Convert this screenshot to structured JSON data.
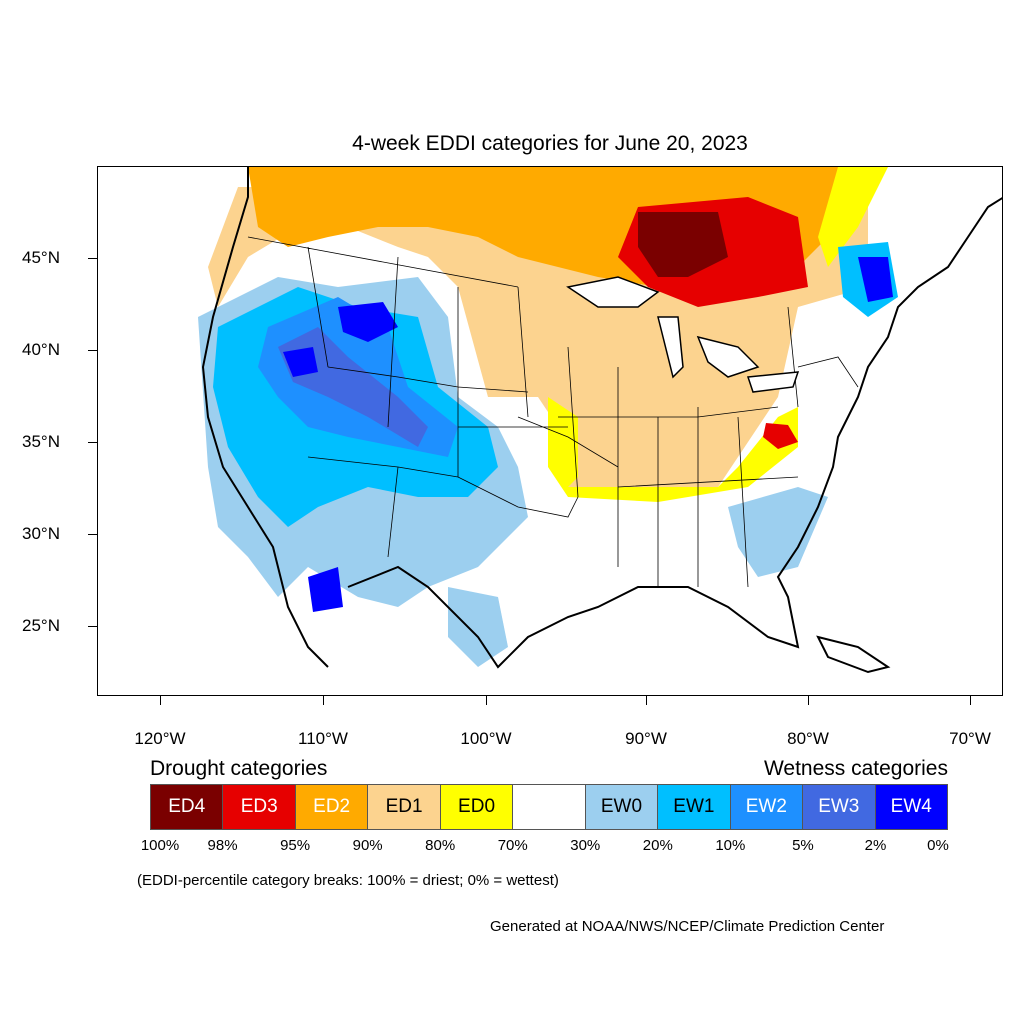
{
  "title": "4-week EDDI categories for June 20, 2023",
  "lat_labels": [
    "45°N",
    "40°N",
    "35°N",
    "30°N",
    "25°N"
  ],
  "lon_labels": [
    "120°W",
    "110°W",
    "100°W",
    "90°W",
    "80°W",
    "70°W"
  ],
  "legend": {
    "drought_heading": "Drought categories",
    "wetness_heading": "Wetness categories",
    "categories": [
      {
        "label": "ED4",
        "color": "#7a0000",
        "text_color": "#ffffff"
      },
      {
        "label": "ED3",
        "color": "#e60000",
        "text_color": "#ffffff"
      },
      {
        "label": "ED2",
        "color": "#ffaa00",
        "text_color": "#ffffff"
      },
      {
        "label": "ED1",
        "color": "#fcd38f",
        "text_color": "#000000"
      },
      {
        "label": "ED0",
        "color": "#ffff00",
        "text_color": "#000000"
      },
      {
        "label": "",
        "color": "#ffffff",
        "text_color": "#000000"
      },
      {
        "label": "EW0",
        "color": "#9ccfef",
        "text_color": "#000000"
      },
      {
        "label": "EW1",
        "color": "#00bfff",
        "text_color": "#000000"
      },
      {
        "label": "EW2",
        "color": "#1e90ff",
        "text_color": "#ffffff"
      },
      {
        "label": "EW3",
        "color": "#4169e1",
        "text_color": "#ffffff"
      },
      {
        "label": "EW4",
        "color": "#0000ff",
        "text_color": "#ffffff"
      }
    ],
    "percentiles": [
      "100%",
      "98%",
      "95%",
      "90%",
      "80%",
      "70%",
      "30%",
      "20%",
      "10%",
      "5%",
      "2%",
      "0%"
    ]
  },
  "note": "(EDDI-percentile category breaks: 100% = driest; 0% = wettest)",
  "credit": "Generated at NOAA/NWS/NCEP/Climate Prediction Center"
}
